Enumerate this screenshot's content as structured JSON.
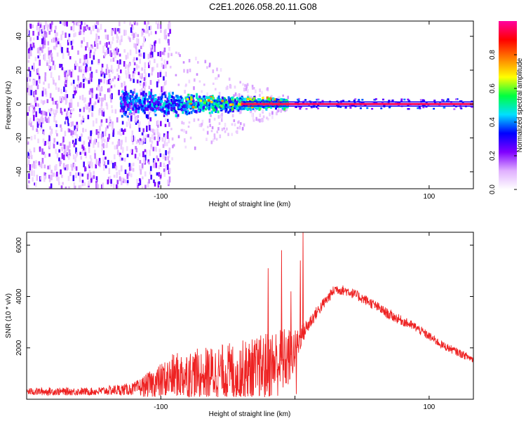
{
  "figure": {
    "title": "C2E1.2026.058.20.11.G08"
  },
  "chart_data": [
    {
      "type": "heatmap",
      "xlabel": "Height of straight line (km)",
      "ylabel": "Frequency (Hz)",
      "xlim": [
        -200,
        133
      ],
      "ylim": [
        -50,
        49
      ],
      "x_ticks": [
        -100,
        0,
        100
      ],
      "x_tick_labels": [
        "-100",
        "",
        "100"
      ],
      "y_ticks": [
        -40,
        -20,
        0,
        20,
        40
      ],
      "y_tick_labels": [
        "-40",
        "-20",
        "0",
        "20",
        "40"
      ],
      "colorbar": {
        "label": "Normalized spectral amplitude",
        "range": [
          0,
          1
        ],
        "ticks": [
          0.0,
          0.2,
          0.4,
          0.6,
          0.8
        ],
        "tick_labels": [
          "0.0",
          "0.2",
          "0.4",
          "0.6",
          "0.8"
        ],
        "colors": [
          "#ffffff",
          "#e0b0ff",
          "#8000ff",
          "#0000ff",
          "#00e0ff",
          "#00ff40",
          "#ffff00",
          "#ff8000",
          "#ff0000",
          "#ff00a0"
        ]
      },
      "features": {
        "carrier_line": {
          "frequency": 0,
          "x_from": -40,
          "x_to": 133,
          "amplitude": 0.95
        },
        "noise_region": {
          "x_from": -200,
          "x_to": -93,
          "freq_from": -50,
          "freq_to": 49,
          "amplitude_range": [
            0.05,
            0.3
          ]
        },
        "blob_region": {
          "x_from": -130,
          "x_to": -5,
          "freq_spread": [
            -8,
            8
          ],
          "amplitude_range": [
            0.25,
            0.55
          ]
        }
      }
    },
    {
      "type": "line",
      "xlabel": "Height of straight line (km)",
      "ylabel": "SNR (10 * v/v)",
      "xlim": [
        -200,
        133
      ],
      "ylim": [
        0,
        6500
      ],
      "x_ticks": [
        -100,
        0,
        100
      ],
      "x_tick_labels": [
        "-100",
        "",
        "100"
      ],
      "y_ticks": [
        2000,
        4000,
        6000
      ],
      "y_tick_labels": [
        "2000",
        "4000",
        "6000"
      ],
      "color": "#ee2222",
      "envelope": {
        "x": [
          -200,
          -150,
          -120,
          -100,
          -90,
          -60,
          -30,
          -15,
          -5,
          0,
          5,
          15,
          30,
          40,
          55,
          70,
          90,
          110,
          133
        ],
        "base": [
          300,
          300,
          400,
          700,
          900,
          1000,
          1100,
          1400,
          1600,
          1900,
          2500,
          3300,
          4300,
          4200,
          3800,
          3300,
          2800,
          2100,
          1550
        ],
        "amp": [
          150,
          150,
          250,
          700,
          900,
          1100,
          1300,
          1400,
          1200,
          800,
          400,
          250,
          200,
          200,
          200,
          200,
          180,
          160,
          150
        ]
      },
      "peaks": [
        {
          "x": 6,
          "y": 6500
        },
        {
          "x": 4,
          "y": 5400
        },
        {
          "x": -10,
          "y": 5800
        },
        {
          "x": -20,
          "y": 5100
        },
        {
          "x": -3,
          "y": 4200
        },
        {
          "x": 1,
          "y": 200
        }
      ]
    }
  ]
}
